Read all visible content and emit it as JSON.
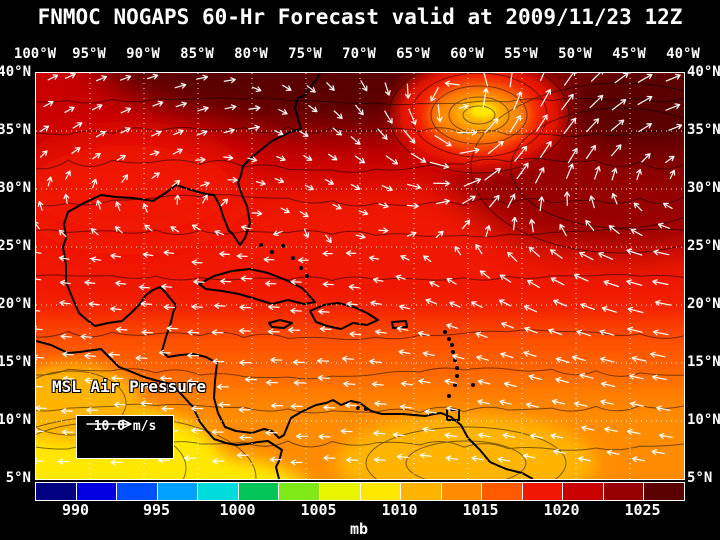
{
  "title": "FNMOC NOGAPS 60-Hr Forecast valid at 2009/11/23 12Z",
  "map": {
    "field_label": "MSL Air Pressure",
    "wind_scale": {
      "label": "10.0 m/s"
    },
    "lon_labels": [
      "100°W",
      "95°W",
      "90°W",
      "85°W",
      "80°W",
      "75°W",
      "70°W",
      "65°W",
      "60°W",
      "55°W",
      "50°W",
      "45°W",
      "40°W"
    ],
    "lat_labels": [
      "40°N",
      "35°N",
      "30°N",
      "25°N",
      "20°N",
      "15°N",
      "10°N",
      "5°N"
    ]
  },
  "colorbar": {
    "units_label": "mb",
    "tick_labels": [
      "990",
      "995",
      "1000",
      "1005",
      "1010",
      "1015",
      "1020",
      "1025"
    ],
    "min_mb": 987.5,
    "interval_mb": 2.5,
    "segment_colors": [
      "#000080",
      "#0000E0",
      "#0050FF",
      "#00A0FF",
      "#00DCDC",
      "#00C455",
      "#7FE817",
      "#E8F400",
      "#FFE800",
      "#FFB400",
      "#FF8C00",
      "#FF5A00",
      "#F01800",
      "#C80000",
      "#960000",
      "#5A0000"
    ]
  },
  "chart_data": {
    "type": "heatmap",
    "title": "FNMOC NOGAPS 60-Hr Forecast valid at 2009/11/23 12Z",
    "model": "FNMOC NOGAPS",
    "forecast_hour": 60,
    "valid": "2009/11/23 12Z",
    "variable": "MSL Air Pressure",
    "units": "mb",
    "x_axis": {
      "ticks": [
        "100°W",
        "95°W",
        "90°W",
        "85°W",
        "80°W",
        "75°W",
        "70°W",
        "65°W",
        "60°W",
        "55°W",
        "50°W",
        "45°W",
        "40°W"
      ]
    },
    "y_axis": {
      "ticks": [
        "40°N",
        "35°N",
        "30°N",
        "25°N",
        "20°N",
        "15°N",
        "10°N",
        "5°N"
      ]
    },
    "colorbar_ticks_mb": [
      990,
      995,
      1000,
      1005,
      1010,
      1015,
      1020,
      1025
    ],
    "contour_interval_mb": 2.5,
    "overlay": "white wind vectors, reference arrow = 10.0 m/s",
    "notable_features": [
      {
        "feature": "compact low, core near 1008 mb (yellow spot)",
        "location": "about 36N 60W"
      },
      {
        "feature": "broad high pressure 1020-1026 mb (dark red)",
        "location": "north of 30N across map top"
      },
      {
        "feature": "lower pressure 1006-1012 mb (orange/yellow)",
        "location": "deep tropics and eastern Pacific south of 15N"
      },
      {
        "feature": "easterly trade-wind flow",
        "location": "south of 25N"
      }
    ]
  }
}
